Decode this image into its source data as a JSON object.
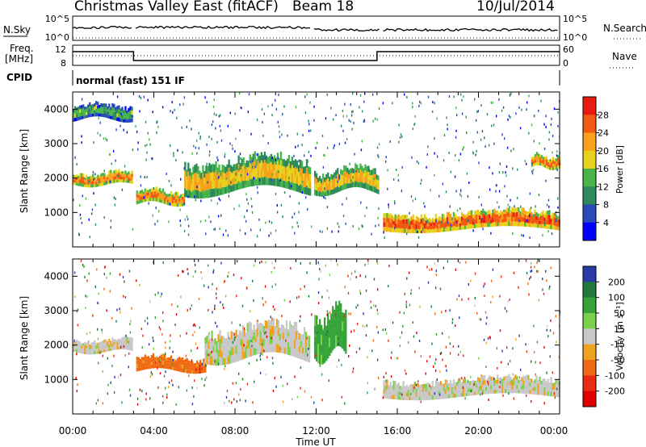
{
  "header": {
    "title": "Christmas Valley East (fitACF)",
    "beam": "Beam 18",
    "date": "10/Jul/2014"
  },
  "params": {
    "nsky_label": "N.Sky",
    "nsky_ticks": [
      "10^5",
      "10^0"
    ],
    "nsearch_label": "N.Search",
    "nsearch_ticks": [
      "10^5",
      "10^0"
    ],
    "freq_label_1": "Freq.",
    "freq_label_2": "[MHz]",
    "freq_ticks": [
      "12",
      "8"
    ],
    "nave_label": "Nave",
    "nave_ticks": [
      "60",
      "0"
    ],
    "cpid_label": "CPID",
    "cpid_value": "normal (fast) 151 IF"
  },
  "axes": {
    "xlabel": "Time UT",
    "x_ticks": [
      "00:00",
      "04:00",
      "08:00",
      "12:00",
      "16:00",
      "20:00",
      "00:00"
    ],
    "ylabel_power": "Slant Range [km]",
    "ylabel_velocity": "Slant Range [km]",
    "y_ticks": [
      "1000",
      "2000",
      "3000",
      "4000"
    ]
  },
  "power_colorbar": {
    "label": "Power [dB]",
    "ticks": [
      "4",
      "8",
      "12",
      "16",
      "20",
      "24",
      "28"
    ],
    "colors": [
      "#0000ff",
      "#2a4ab8",
      "#2e8a5a",
      "#47b54a",
      "#e6d21c",
      "#f7a11c",
      "#f25a14",
      "#ea1a10"
    ]
  },
  "velocity_colorbar": {
    "label": "Velocity [m s⁻¹]",
    "ticks": [
      "200",
      "100",
      "50",
      "15",
      "-15",
      "-50",
      "-100",
      "-200"
    ],
    "colors": [
      "#2a3aa8",
      "#1f7a3a",
      "#36a33a",
      "#7ad24a",
      "#c8c8c8",
      "#f0a21e",
      "#f06a14",
      "#ea2a14",
      "#e00000"
    ]
  },
  "chart_data": [
    {
      "type": "heatmap",
      "panel": "power",
      "x_unit": "hours UT",
      "xlim": [
        0,
        24
      ],
      "ylim": [
        0,
        4500
      ],
      "ylabel": "Slant Range [km]",
      "colorbar_label": "Power [dB]",
      "colorbar_range": [
        0,
        32
      ],
      "data_gaps_hours": [
        [
          2.95,
          3.05
        ],
        [
          11.75,
          11.85
        ],
        [
          15.1,
          15.25
        ]
      ],
      "bands": [
        {
          "t": [
            0.0,
            2.9
          ],
          "range_km": [
            1800,
            2300
          ],
          "power_db": 24
        },
        {
          "t": [
            0.0,
            2.9
          ],
          "range_km": [
            3700,
            4300
          ],
          "power_db": 14
        },
        {
          "t": [
            3.05,
            5.5
          ],
          "range_km": [
            1250,
            1800
          ],
          "power_db": 24
        },
        {
          "t": [
            5.5,
            11.7
          ],
          "range_km": [
            1600,
            2900
          ],
          "power_db": 20
        },
        {
          "t": [
            11.9,
            15.1
          ],
          "range_km": [
            1600,
            2500
          ],
          "power_db": 20
        },
        {
          "t": [
            15.3,
            24.0
          ],
          "range_km": [
            500,
            1200
          ],
          "power_db": 26
        },
        {
          "t": [
            22.6,
            24.0
          ],
          "range_km": [
            2300,
            2800
          ],
          "power_db": 24
        }
      ]
    },
    {
      "type": "heatmap",
      "panel": "velocity",
      "x_unit": "hours UT",
      "xlim": [
        0,
        24
      ],
      "ylim": [
        0,
        4500
      ],
      "ylabel": "Slant Range [km]",
      "colorbar_label": "Velocity [m s⁻¹]",
      "colorbar_range": [
        -250,
        250
      ],
      "bands": [
        {
          "t": [
            0.0,
            2.9
          ],
          "range_km": [
            1800,
            2300
          ],
          "velocity": 0
        },
        {
          "t": [
            3.05,
            6.5
          ],
          "range_km": [
            1250,
            1800
          ],
          "velocity": -40
        },
        {
          "t": [
            6.5,
            11.7
          ],
          "range_km": [
            1600,
            2900
          ],
          "velocity": 0
        },
        {
          "t": [
            11.9,
            13.5
          ],
          "range_km": [
            1700,
            3500
          ],
          "velocity": 40
        },
        {
          "t": [
            15.3,
            24.0
          ],
          "range_km": [
            500,
            1200
          ],
          "velocity": 0
        }
      ]
    }
  ]
}
